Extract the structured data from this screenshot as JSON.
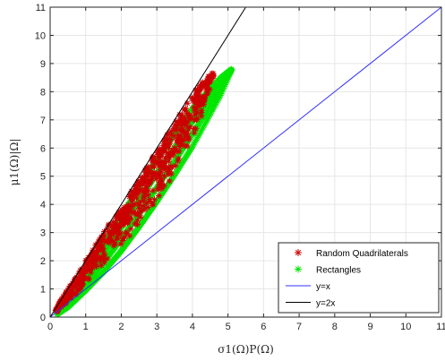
{
  "chart_data": {
    "type": "scatter",
    "xlabel": "σ1(Ω)P(Ω)",
    "ylabel": "μ1(Ω)|Ω|",
    "xlim": [
      0,
      11
    ],
    "ylim": [
      0,
      11
    ],
    "xticks": [
      "0",
      "1",
      "2",
      "3",
      "4",
      "5",
      "6",
      "7",
      "8",
      "9",
      "10",
      "11"
    ],
    "yticks": [
      "0",
      "1",
      "2",
      "3",
      "4",
      "5",
      "6",
      "7",
      "8",
      "9",
      "10",
      "11"
    ],
    "x_tick_values": [
      0,
      1,
      2,
      3,
      4,
      5,
      6,
      7,
      8,
      9,
      10,
      11
    ],
    "y_tick_values": [
      0,
      1,
      2,
      3,
      4,
      5,
      6,
      7,
      8,
      9,
      10,
      11
    ],
    "grid": true,
    "legend_position": "bottom-right",
    "colors": {
      "random_quadrilaterals": "#cc0000",
      "rectangles": "#00e600",
      "y_eq_x": "#3333ff",
      "y_eq_2x": "#000000"
    },
    "series": [
      {
        "name": "Random Quadrilaterals",
        "kind": "scatter",
        "marker": "asterisk",
        "color": "#cc0000",
        "region": {
          "x": [
            0.15,
            0.4,
            0.7,
            1.0,
            1.3,
            1.6,
            1.9,
            2.2,
            2.5,
            2.8,
            3.1,
            3.4,
            3.7,
            4.0,
            4.3,
            4.6
          ],
          "y_upper": [
            0.3,
            0.8,
            1.4,
            2.0,
            2.6,
            3.2,
            3.7,
            4.3,
            4.9,
            5.5,
            6.1,
            6.7,
            7.3,
            7.9,
            8.4,
            8.7
          ],
          "y_lower": [
            0.1,
            0.4,
            0.7,
            1.2,
            1.6,
            2.0,
            2.3,
            2.8,
            3.3,
            3.8,
            4.3,
            4.9,
            5.5,
            6.3,
            7.2,
            8.5
          ]
        },
        "count": 700
      },
      {
        "name": "Rectangles",
        "kind": "curve-band",
        "marker": "asterisk",
        "color": "#00e600",
        "x": [
          0.2,
          0.5,
          1.0,
          1.5,
          2.0,
          2.5,
          3.0,
          3.5,
          4.0,
          4.5,
          4.8,
          5.1
        ],
        "y_upper": [
          0.2,
          0.6,
          1.6,
          2.6,
          3.6,
          4.6,
          5.6,
          6.5,
          7.4,
          8.1,
          8.5,
          8.8
        ],
        "y_lower": [
          0.1,
          0.35,
          0.95,
          1.6,
          2.35,
          3.2,
          4.1,
          5.05,
          6.05,
          7.2,
          7.9,
          8.75
        ]
      },
      {
        "name": "y=x",
        "kind": "line",
        "color": "#3333ff",
        "x": [
          0,
          11
        ],
        "y": [
          0,
          11
        ]
      },
      {
        "name": "y=2x",
        "kind": "line",
        "color": "#000000",
        "x": [
          0,
          5.5
        ],
        "y": [
          0,
          11
        ]
      }
    ]
  }
}
